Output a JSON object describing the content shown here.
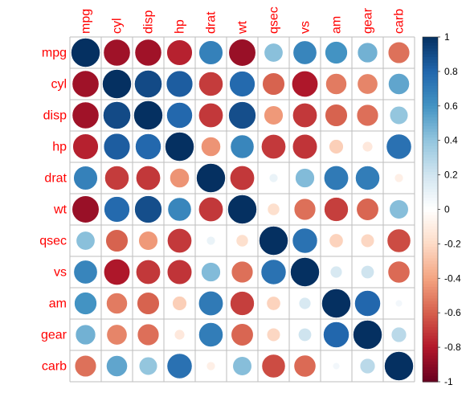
{
  "chart_data": {
    "type": "heatmap",
    "variables": [
      "mpg",
      "cyl",
      "disp",
      "hp",
      "drat",
      "wt",
      "qsec",
      "vs",
      "am",
      "gear",
      "carb"
    ],
    "matrix": [
      [
        1,
        -0.852,
        -0.848,
        -0.776,
        0.681,
        -0.868,
        0.419,
        0.664,
        0.6,
        0.48,
        -0.551
      ],
      [
        -0.852,
        1,
        0.902,
        0.832,
        -0.7,
        0.782,
        -0.591,
        -0.811,
        -0.523,
        -0.493,
        0.527
      ],
      [
        -0.848,
        0.902,
        1,
        0.791,
        -0.71,
        0.888,
        -0.434,
        -0.71,
        -0.591,
        -0.556,
        0.395
      ],
      [
        -0.776,
        0.832,
        0.791,
        1,
        -0.449,
        0.659,
        -0.708,
        -0.723,
        -0.243,
        -0.126,
        0.75
      ],
      [
        0.681,
        -0.7,
        -0.71,
        -0.449,
        1,
        -0.712,
        0.091,
        0.44,
        0.713,
        0.7,
        -0.091
      ],
      [
        -0.868,
        0.782,
        0.888,
        0.659,
        -0.712,
        1,
        -0.175,
        -0.555,
        -0.692,
        -0.583,
        0.428
      ],
      [
        0.419,
        -0.591,
        -0.434,
        -0.708,
        0.091,
        -0.175,
        1,
        0.745,
        -0.23,
        -0.213,
        -0.656
      ],
      [
        0.664,
        -0.811,
        -0.71,
        -0.723,
        0.44,
        -0.555,
        0.745,
        1,
        0.168,
        0.206,
        -0.57
      ],
      [
        0.6,
        -0.523,
        -0.591,
        -0.243,
        0.713,
        -0.692,
        -0.23,
        0.168,
        1,
        0.794,
        0.058
      ],
      [
        0.48,
        -0.493,
        -0.556,
        -0.126,
        0.7,
        -0.583,
        -0.213,
        0.206,
        0.794,
        1,
        0.274
      ],
      [
        -0.551,
        0.527,
        0.395,
        0.75,
        -0.091,
        0.428,
        -0.656,
        -0.57,
        0.058,
        0.274,
        1
      ]
    ],
    "color_scale": {
      "min": -1,
      "max": 1,
      "ticks": [
        1,
        0.8,
        0.6,
        0.4,
        0.2,
        0,
        -0.2,
        -0.4,
        -0.6,
        -0.8,
        -1
      ],
      "tick_labels": [
        "1",
        "0.8",
        "0.6",
        "0.4",
        "0.2",
        "0",
        "-0.2",
        "-0.4",
        "-0.6",
        "-0.8",
        "-1"
      ],
      "colors": [
        "#67001F",
        "#B2182B",
        "#D6604D",
        "#F4A582",
        "#FDDBC7",
        "#FFFFFF",
        "#D1E5F0",
        "#92C5DE",
        "#4393C3",
        "#2166AC",
        "#053061"
      ]
    },
    "label_color": "#FF0000",
    "grid": true,
    "legend_position": "right"
  }
}
